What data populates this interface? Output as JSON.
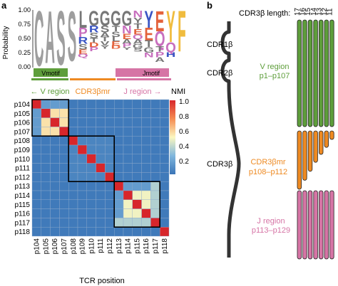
{
  "panel_a": {
    "label": "a",
    "logo": {
      "ylabel": "Probability",
      "y_ticks": [
        "1.00",
        "0.75",
        "0.50",
        "0.25",
        "0.00"
      ],
      "columns": [
        {
          "pos": "p104",
          "letters": [
            {
              "l": "C",
              "h": 0.97,
              "c": "#9e9e9e"
            }
          ]
        },
        {
          "pos": "p105",
          "letters": [
            {
              "l": "A",
              "h": 0.92,
              "c": "#9e9e9e"
            }
          ]
        },
        {
          "pos": "p106",
          "letters": [
            {
              "l": "S",
              "h": 0.95,
              "c": "#9e9e9e"
            }
          ]
        },
        {
          "pos": "p107",
          "letters": [
            {
              "l": "S",
              "h": 0.88,
              "c": "#9e9e9e"
            }
          ]
        },
        {
          "pos": "p108",
          "letters": [
            {
              "l": "L",
              "h": 0.3,
              "c": "#777777"
            },
            {
              "l": "P",
              "h": 0.16,
              "c": "#c86fbe"
            },
            {
              "l": "R",
              "h": 0.12,
              "c": "#3a55c4"
            },
            {
              "l": "S",
              "h": 0.1,
              "c": "#777777"
            },
            {
              "l": "E",
              "h": 0.08,
              "c": "#e4623b"
            },
            {
              "l": "Q",
              "h": 0.06,
              "c": "#c86fbe"
            }
          ]
        },
        {
          "pos": "p109",
          "letters": [
            {
              "l": "G",
              "h": 0.26,
              "c": "#777777"
            },
            {
              "l": "R",
              "h": 0.12,
              "c": "#3a55c4"
            },
            {
              "l": "S",
              "h": 0.1,
              "c": "#777777"
            },
            {
              "l": "T",
              "h": 0.08,
              "c": "#777777"
            },
            {
              "l": "D",
              "h": 0.08,
              "c": "#e4623b"
            },
            {
              "l": "P",
              "h": 0.07,
              "c": "#c86fbe"
            }
          ]
        },
        {
          "pos": "p110",
          "letters": [
            {
              "l": "G",
              "h": 0.26,
              "c": "#777777"
            },
            {
              "l": "S",
              "h": 0.12,
              "c": "#777777"
            },
            {
              "l": "A",
              "h": 0.08,
              "c": "#777777"
            },
            {
              "l": "T",
              "h": 0.08,
              "c": "#777777"
            },
            {
              "l": "V",
              "h": 0.07,
              "c": "#777777"
            },
            {
              "l": "Y",
              "h": 0.06,
              "c": "#777777"
            }
          ]
        },
        {
          "pos": "p111",
          "letters": [
            {
              "l": "G",
              "h": 0.26,
              "c": "#777777"
            },
            {
              "l": "T",
              "h": 0.1,
              "c": "#777777"
            },
            {
              "l": "S",
              "h": 0.1,
              "c": "#777777"
            },
            {
              "l": "L",
              "h": 0.08,
              "c": "#777777"
            },
            {
              "l": "E",
              "h": 0.07,
              "c": "#e4623b"
            },
            {
              "l": "D",
              "h": 0.06,
              "c": "#e4623b"
            }
          ]
        },
        {
          "pos": "p112",
          "letters": [
            {
              "l": "G",
              "h": 0.26,
              "c": "#777777"
            },
            {
              "l": "N",
              "h": 0.14,
              "c": "#c86fbe"
            },
            {
              "l": "E",
              "h": 0.1,
              "c": "#e4623b"
            },
            {
              "l": "A",
              "h": 0.08,
              "c": "#777777"
            },
            {
              "l": "P",
              "h": 0.06,
              "c": "#c86fbe"
            },
            {
              "l": "Y",
              "h": 0.05,
              "c": "#777777"
            }
          ]
        },
        {
          "pos": "p113",
          "letters": [
            {
              "l": "N",
              "h": 0.12,
              "c": "#c86fbe"
            },
            {
              "l": "Y",
              "h": 0.1,
              "c": "#777777"
            },
            {
              "l": "T",
              "h": 0.1,
              "c": "#777777"
            },
            {
              "l": "E",
              "h": 0.1,
              "c": "#e4623b"
            },
            {
              "l": "Q",
              "h": 0.08,
              "c": "#c86fbe"
            },
            {
              "l": "A",
              "h": 0.08,
              "c": "#777777"
            },
            {
              "l": "G",
              "h": 0.08,
              "c": "#777777"
            },
            {
              "l": "S",
              "h": 0.06,
              "c": "#777777"
            }
          ]
        },
        {
          "pos": "p114",
          "letters": [
            {
              "l": "Y",
              "h": 0.3,
              "c": "#3a55c4"
            },
            {
              "l": "E",
              "h": 0.22,
              "c": "#e4623b"
            },
            {
              "l": "T",
              "h": 0.12,
              "c": "#777777"
            },
            {
              "l": "G",
              "h": 0.1,
              "c": "#777777"
            },
            {
              "l": "N",
              "h": 0.08,
              "c": "#c86fbe"
            }
          ]
        },
        {
          "pos": "p115",
          "letters": [
            {
              "l": "E",
              "h": 0.36,
              "c": "#e4623b"
            },
            {
              "l": "Q",
              "h": 0.26,
              "c": "#c86fbe"
            },
            {
              "l": "T",
              "h": 0.1,
              "c": "#777777"
            },
            {
              "l": "P",
              "h": 0.1,
              "c": "#c86fbe"
            },
            {
              "l": "A",
              "h": 0.08,
              "c": "#777777"
            }
          ]
        },
        {
          "pos": "p116",
          "letters": [
            {
              "l": "Y",
              "h": 0.55,
              "c": "#f0bc3e"
            },
            {
              "l": "Q",
              "h": 0.18,
              "c": "#c86fbe"
            },
            {
              "l": "H",
              "h": 0.08,
              "c": "#3a55c4"
            }
          ]
        },
        {
          "pos": "p117",
          "letters": [
            {
              "l": "F",
              "h": 0.72,
              "c": "#f0bc3e"
            }
          ]
        }
      ],
      "motifs": [
        {
          "label": "Vmotif",
          "color": "#5e9e3b"
        },
        {
          "label": "Jmotif",
          "color": "#d674a5"
        }
      ]
    },
    "regions": [
      {
        "label": "← V region",
        "color": "#5e9e3b"
      },
      {
        "label": "CDR3βmr",
        "color": "#ee8a22"
      },
      {
        "label": "J region →",
        "color": "#d674a5"
      }
    ],
    "heatmap": {
      "labels": [
        "p104",
        "p105",
        "p106",
        "p107",
        "p108",
        "p109",
        "p110",
        "p111",
        "p112",
        "p113",
        "p114",
        "p115",
        "p116",
        "p117",
        "p118"
      ],
      "blocks": [
        [
          0,
          3
        ],
        [
          4,
          8
        ],
        [
          9,
          13
        ]
      ],
      "colorbar_title": "NMI",
      "colorbar_ticks": [
        "1.0",
        "0.8",
        "0.6",
        "0.4",
        "0.2"
      ],
      "xlabel": "TCR position"
    }
  },
  "panel_b": {
    "label": "b",
    "length_title": "CDR3β length:",
    "length_values": [
      "17",
      "16",
      "15",
      "14",
      "13",
      "12",
      "11"
    ],
    "cdr_labels": [
      "CDR1β",
      "CDR2β",
      "CDR3β"
    ],
    "v_region": {
      "name": "V region",
      "range": "p1–p107",
      "color": "#5e9e3b"
    },
    "cdr3mr": {
      "name": "CDR3βmr",
      "range": "p108–p112",
      "color": "#ee8a22"
    },
    "j_region": {
      "name": "J region",
      "range": "p113–p129",
      "color": "#d674a5"
    },
    "cdr3mr_bar_lengths": [
      1.0,
      0.82,
      0.64,
      0.46,
      0.3,
      0.16,
      0.0
    ]
  },
  "colors": {
    "accent_green": "#5e9e3b",
    "accent_orange": "#ee8a22",
    "accent_pink": "#d674a5",
    "heatmap_low": "#3b75b7"
  }
}
